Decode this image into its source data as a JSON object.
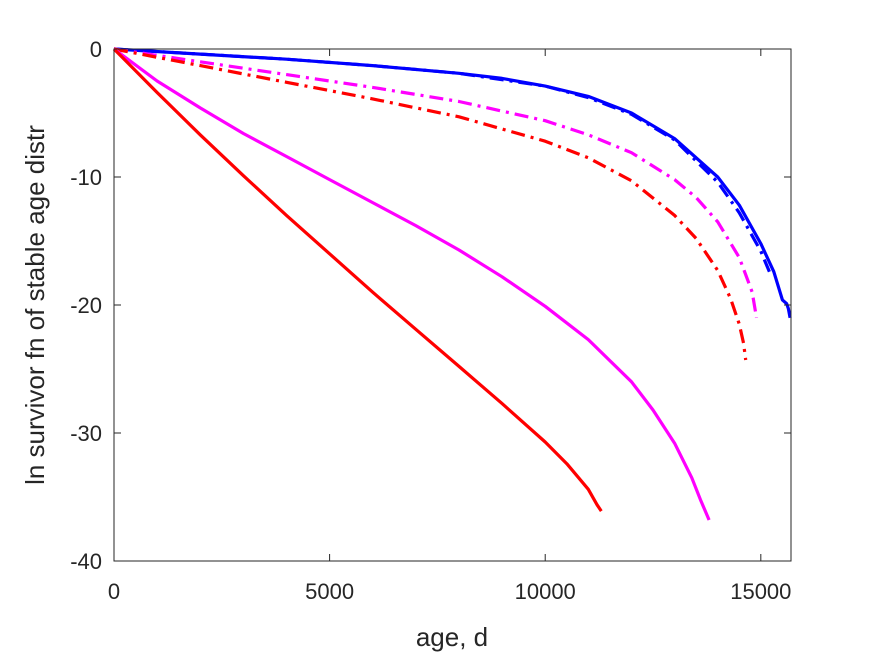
{
  "chart_data": {
    "type": "line",
    "title": "",
    "xlabel": "age, d",
    "ylabel": "ln survivor fn of stable age distr",
    "xlim": [
      0,
      15700
    ],
    "ylim": [
      -40,
      0
    ],
    "xticks": [
      0,
      5000,
      10000,
      15000
    ],
    "yticks": [
      0,
      -10,
      -20,
      -30,
      -40
    ],
    "xtick_labels": [
      "0",
      "5000",
      "10000",
      "15000"
    ],
    "ytick_labels": [
      "0",
      "-10",
      "-20",
      "-30",
      "-40"
    ],
    "grid": false,
    "box": true,
    "series": [
      {
        "color": "#0000ff",
        "style": "solid",
        "x": [
          0,
          2000,
          4000,
          6000,
          8000,
          9000,
          10000,
          11000,
          12000,
          13000,
          14000,
          14500,
          15000,
          15300,
          15500,
          15600,
          15640,
          15680
        ],
        "y": [
          0,
          -0.4,
          -0.8,
          -1.3,
          -1.9,
          -2.3,
          -2.9,
          -3.7,
          -5.0,
          -7.0,
          -10.0,
          -12.2,
          -15.2,
          -17.4,
          -19.6,
          -19.9,
          -20.3,
          -21.0
        ]
      },
      {
        "color": "#0000ff",
        "style": "dashdot",
        "x": [
          0,
          2000,
          4000,
          6000,
          8000,
          9000,
          10000,
          11000,
          12000,
          13000,
          14000,
          14500,
          15000,
          15100,
          15200
        ],
        "y": [
          0,
          -0.4,
          -0.8,
          -1.3,
          -1.9,
          -2.4,
          -2.9,
          -3.8,
          -5.1,
          -7.1,
          -10.4,
          -12.8,
          -15.8,
          -16.6,
          -17.4
        ]
      },
      {
        "color": "#ff00ff",
        "style": "dashdot",
        "x": [
          0,
          2000,
          4000,
          6000,
          8000,
          10000,
          11000,
          12000,
          13000,
          13500,
          14000,
          14500,
          14800,
          14900
        ],
        "y": [
          0,
          -1.0,
          -2.0,
          -3.0,
          -4.1,
          -5.6,
          -6.7,
          -8.1,
          -10.2,
          -11.6,
          -13.5,
          -16.3,
          -19.0,
          -21.0
        ]
      },
      {
        "color": "#ff0000",
        "style": "dashdot",
        "x": [
          0,
          2000,
          4000,
          6000,
          8000,
          10000,
          11000,
          12000,
          13000,
          13500,
          14000,
          14300,
          14500,
          14600,
          14650
        ],
        "y": [
          0,
          -1.3,
          -2.6,
          -3.9,
          -5.3,
          -7.2,
          -8.5,
          -10.3,
          -13.0,
          -14.8,
          -17.3,
          -19.5,
          -21.5,
          -23.0,
          -24.3
        ]
      },
      {
        "color": "#ff00ff",
        "style": "solid",
        "x": [
          0,
          1000,
          2000,
          3000,
          4000,
          5000,
          6000,
          7000,
          8000,
          9000,
          10000,
          11000,
          12000,
          12500,
          13000,
          13400,
          13600,
          13800
        ],
        "y": [
          0,
          -2.5,
          -4.6,
          -6.6,
          -8.4,
          -10.2,
          -12.0,
          -13.8,
          -15.7,
          -17.8,
          -20.1,
          -22.7,
          -26.0,
          -28.2,
          -30.8,
          -33.5,
          -35.2,
          -36.8
        ]
      },
      {
        "color": "#ff0000",
        "style": "solid",
        "x": [
          0,
          1000,
          2000,
          3000,
          4000,
          5000,
          6000,
          7000,
          8000,
          9000,
          10000,
          10500,
          11000,
          11200,
          11300
        ],
        "y": [
          0,
          -3.4,
          -6.7,
          -9.9,
          -13.0,
          -16.0,
          -19.0,
          -21.9,
          -24.8,
          -27.7,
          -30.7,
          -32.4,
          -34.4,
          -35.6,
          -36.1
        ]
      }
    ]
  }
}
